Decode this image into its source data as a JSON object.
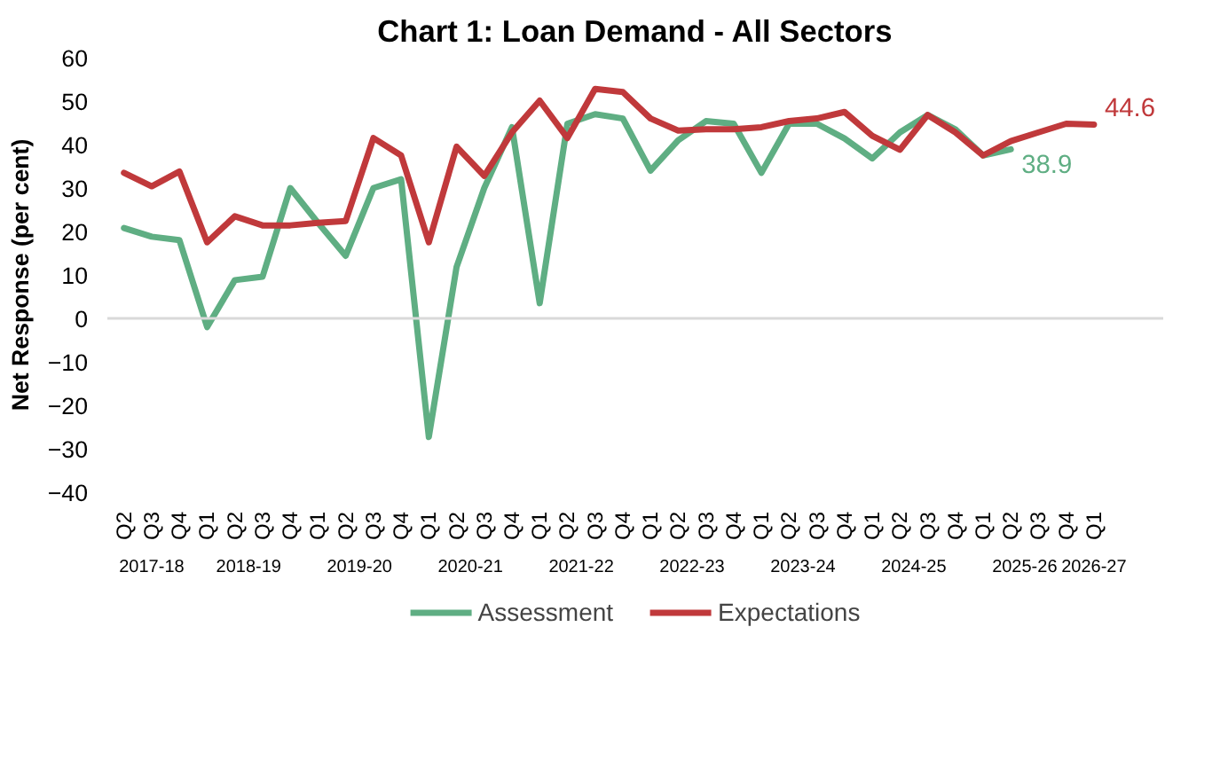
{
  "chart_data": {
    "type": "line",
    "title": "Chart 1: Loan Demand - All Sectors",
    "ylabel": "Net Response (per cent)",
    "categories": [
      "Q2",
      "Q3",
      "Q4",
      "Q1",
      "Q2",
      "Q3",
      "Q4",
      "Q1",
      "Q2",
      "Q3",
      "Q4",
      "Q1",
      "Q2",
      "Q3",
      "Q4",
      "Q1",
      "Q2",
      "Q3",
      "Q4",
      "Q1",
      "Q2",
      "Q3",
      "Q4",
      "Q1",
      "Q2",
      "Q3",
      "Q4",
      "Q1",
      "Q2",
      "Q3",
      "Q4",
      "Q1",
      "Q2",
      "Q3",
      "Q4",
      "Q1"
    ],
    "annotations": [
      "2017-18",
      "2018-19",
      "2019-20",
      "2020-21",
      "2021-22",
      "2022-23",
      "2023-24",
      "2024-25",
      "2025-26",
      "2026-27"
    ],
    "series": [
      {
        "name": "Assessment",
        "color": "#5fae83",
        "values": [
          20.8,
          18.8,
          18,
          -2,
          8.8,
          9.6,
          30,
          22,
          14.4,
          30,
          32,
          -27.3,
          11.8,
          30,
          44,
          3.5,
          44.8,
          47,
          46,
          34,
          41,
          45.4,
          44.8,
          33.5,
          44.8,
          44.8,
          41.4,
          36.8,
          42.8,
          46.8,
          43.5,
          37.5,
          38.9,
          null,
          null,
          null
        ],
        "value_labels": [
          null,
          null,
          null,
          null,
          null,
          null,
          null,
          null,
          null,
          null,
          null,
          null,
          null,
          null,
          null,
          null,
          null,
          null,
          null,
          null,
          null,
          null,
          null,
          null,
          null,
          null,
          null,
          null,
          null,
          null,
          null,
          null,
          "38.9",
          null,
          null,
          null
        ]
      },
      {
        "name": "Expectations",
        "color": "#c0393b",
        "values": [
          33.5,
          30.4,
          33.8,
          17.5,
          23.5,
          21.4,
          21.4,
          22,
          22.4,
          41.5,
          37.5,
          17.5,
          39.5,
          32.8,
          42.8,
          50.1,
          41.5,
          52.8,
          52.1,
          46,
          43.2,
          43.5,
          43.5,
          44,
          45.4,
          46,
          47.5,
          42,
          38.8,
          46.8,
          42.8,
          37.5,
          40.8,
          42.8,
          44.8,
          44.6
        ],
        "value_labels": [
          null,
          null,
          null,
          null,
          null,
          null,
          null,
          null,
          null,
          null,
          null,
          null,
          null,
          null,
          null,
          null,
          null,
          null,
          null,
          null,
          null,
          null,
          null,
          null,
          null,
          null,
          null,
          null,
          null,
          null,
          null,
          null,
          null,
          null,
          null,
          "44.6"
        ]
      }
    ],
    "ylim": [
      -40,
      60
    ],
    "yticks": [
      -40,
      -30,
      -20,
      -10,
      0,
      10,
      20,
      30,
      40,
      50,
      60
    ],
    "ref_lines": [
      {
        "axis": "y",
        "value": 0,
        "color": "#d9d9d9"
      }
    ],
    "grid": false,
    "legend": "bottom",
    "marker": "none",
    "line_style": "solid"
  }
}
